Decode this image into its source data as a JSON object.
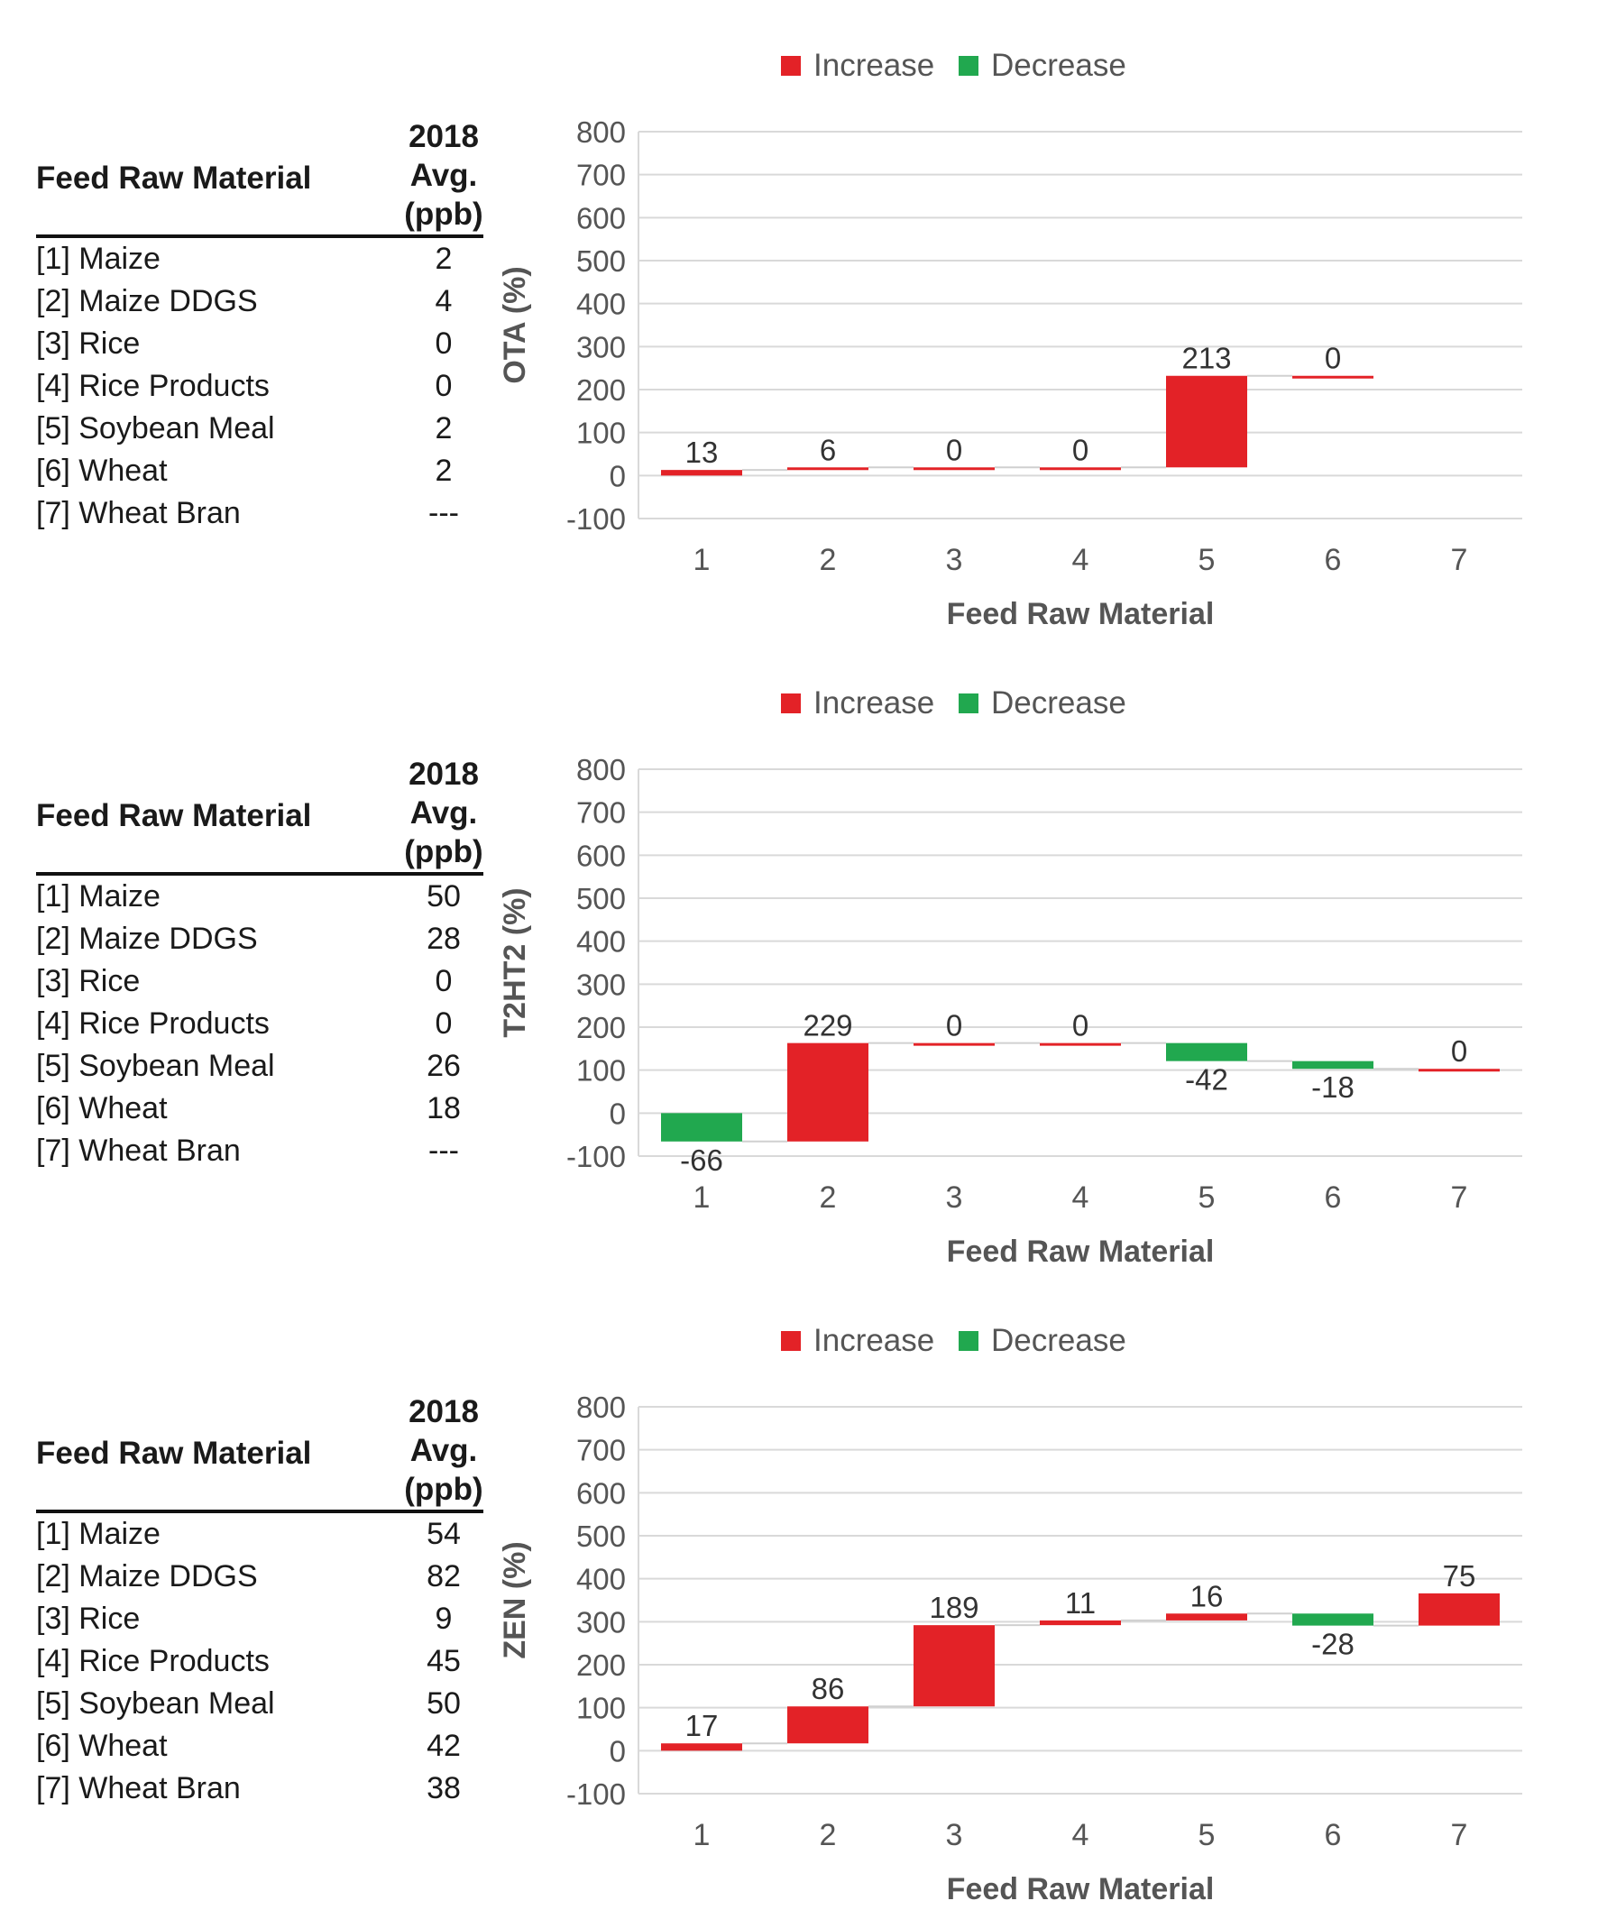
{
  "legend": {
    "increase_label": "Increase",
    "decrease_label": "Decrease",
    "increase_color": "#e32227",
    "decrease_color": "#21a84f"
  },
  "x_axis_label": "Feed Raw Material",
  "table_header": {
    "name": "Feed Raw Material",
    "avg_line1": "2018",
    "avg_line2": "Avg.",
    "avg_line3": "(ppb)"
  },
  "materials": [
    "[1] Maize",
    "[2] Maize DDGS",
    "[3] Rice",
    "[4] Rice Products",
    "[5] Soybean Meal",
    "[6] Wheat",
    "[7] Wheat Bran"
  ],
  "chart_data": [
    {
      "type": "bar",
      "ylabel": "OTA (%)",
      "xlabel": "Feed Raw Material",
      "ylim": [
        -100,
        800
      ],
      "yticks": [
        800,
        700,
        600,
        500,
        400,
        300,
        200,
        100,
        0,
        -100
      ],
      "categories": [
        "1",
        "2",
        "3",
        "4",
        "5",
        "6",
        "7"
      ],
      "values": [
        13,
        6,
        0,
        0,
        213,
        0,
        null
      ],
      "value_labels": [
        "13",
        "6",
        "0",
        "0",
        "213",
        "0",
        ""
      ],
      "table_values": [
        "2",
        "4",
        "0",
        "0",
        "2",
        "2",
        "---"
      ],
      "legend_position": "top-center"
    },
    {
      "type": "bar",
      "ylabel": "T2HT2 (%)",
      "xlabel": "Feed Raw Material",
      "ylim": [
        -100,
        800
      ],
      "yticks": [
        800,
        700,
        600,
        500,
        400,
        300,
        200,
        100,
        0,
        -100
      ],
      "categories": [
        "1",
        "2",
        "3",
        "4",
        "5",
        "6",
        "7"
      ],
      "values": [
        -66,
        229,
        0,
        0,
        -42,
        -18,
        0
      ],
      "value_labels": [
        "-66",
        "229",
        "0",
        "0",
        "-42",
        "-18",
        "0"
      ],
      "table_values": [
        "50",
        "28",
        "0",
        "0",
        "26",
        "18",
        "---"
      ],
      "legend_position": "top-center"
    },
    {
      "type": "bar",
      "ylabel": "ZEN (%)",
      "xlabel": "Feed Raw Material",
      "ylim": [
        -100,
        800
      ],
      "yticks": [
        800,
        700,
        600,
        500,
        400,
        300,
        200,
        100,
        0,
        -100
      ],
      "categories": [
        "1",
        "2",
        "3",
        "4",
        "5",
        "6",
        "7"
      ],
      "values": [
        17,
        86,
        189,
        11,
        16,
        -28,
        75
      ],
      "value_labels": [
        "17",
        "86",
        "189",
        "11",
        "16",
        "-28",
        "75"
      ],
      "table_values": [
        "54",
        "82",
        "9",
        "45",
        "50",
        "42",
        "38"
      ],
      "legend_position": "top-center"
    }
  ]
}
